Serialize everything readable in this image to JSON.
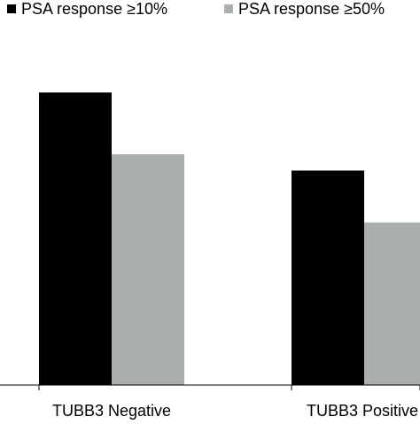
{
  "chart_data": {
    "type": "bar",
    "categories": [
      "TUBB3 Negative",
      "TUBB3 Positive"
    ],
    "series": [
      {
        "name": "PSA response ≥10%",
        "values": [
          90,
          66
        ],
        "color": "#000000"
      },
      {
        "name": "PSA response ≥50%",
        "values": [
          71,
          50
        ],
        "color": "#a9b0ae"
      }
    ],
    "ylim": [
      0,
      113
    ],
    "grid": false,
    "legend_position": "top"
  }
}
